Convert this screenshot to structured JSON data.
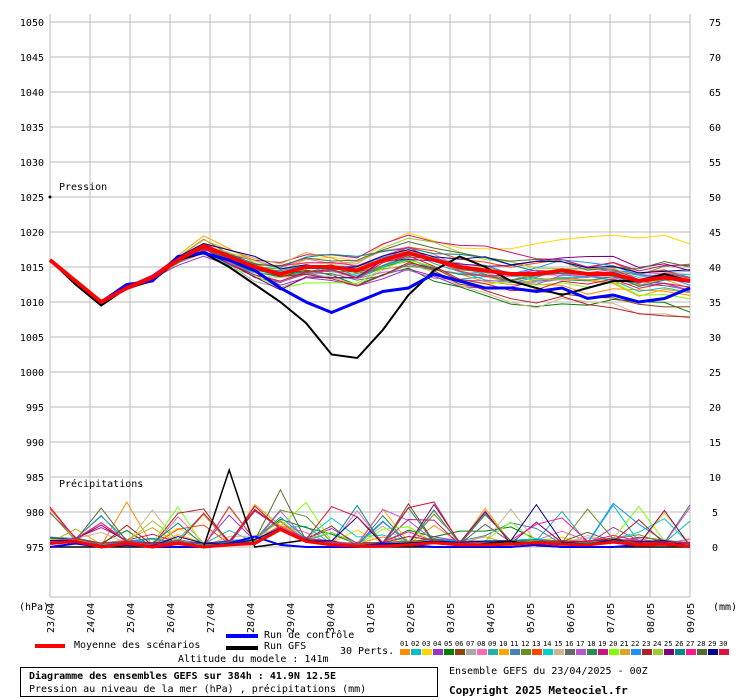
{
  "chart_data": {
    "type": "line",
    "title": "Diagramme des ensembles GEFS sur 384h : 41.9N 12.5E",
    "subtitle": "Pression au niveau de la mer (hPa) , précipitations (mm)",
    "x": [
      "23/04",
      "24/04",
      "25/04",
      "26/04",
      "27/04",
      "28/04",
      "29/04",
      "30/04",
      "01/05",
      "02/05",
      "03/05",
      "04/05",
      "05/05",
      "06/05",
      "07/05",
      "08/05",
      "09/05"
    ],
    "left_axis": {
      "label": "(hPa)",
      "ticks": [
        975,
        980,
        985,
        990,
        995,
        1000,
        1005,
        1010,
        1015,
        1020,
        1025,
        1030,
        1035,
        1040,
        1045,
        1050
      ],
      "range": [
        975,
        1050
      ]
    },
    "right_axis": {
      "label": "(mm)",
      "ticks": [
        0,
        5,
        10,
        15,
        20,
        25,
        30,
        35,
        40,
        45,
        50,
        55,
        60,
        65,
        70,
        75
      ],
      "range": [
        0,
        75
      ]
    },
    "annotations": [
      "Pression",
      "Précipitations"
    ],
    "grid": true,
    "series": [
      {
        "name": "Moyenne des scénarios",
        "color": "#ff0000",
        "pressure": [
          1016.0,
          1013.0,
          1010.0,
          1012.0,
          1013.5,
          1016.0,
          1018.0,
          1016.5,
          1015.0,
          1014.0,
          1015.0,
          1015.0,
          1014.5,
          1016.0,
          1017.0,
          1016.0,
          1015.0,
          1014.5,
          1014.0,
          1014.0,
          1014.5,
          1014.0,
          1014.0,
          1013.0,
          1013.5,
          1013.0
        ],
        "precip": [
          0.5,
          0.8,
          0,
          0.5,
          0,
          0.5,
          0,
          0.3,
          0.5,
          2.5,
          0.8,
          0.3,
          0.1,
          0.1,
          0.3,
          0.6,
          0.3,
          0.3,
          0.4,
          0.6,
          0.4,
          0.3,
          0.7,
          0.3,
          0.4,
          0.1
        ]
      },
      {
        "name": "Run de contrôle",
        "color": "#0000ff",
        "pressure": [
          1016.0,
          1013.0,
          1010.0,
          1012.5,
          1013.0,
          1016.5,
          1017.0,
          1016.0,
          1014.5,
          1012.0,
          1010.0,
          1008.5,
          1010.0,
          1011.5,
          1012.0,
          1014.0,
          1013.0,
          1012.0,
          1012.0,
          1011.5,
          1012.0,
          1010.5,
          1011.0,
          1010.0,
          1010.5,
          1012.0
        ],
        "precip": [
          0,
          0.5,
          0,
          0.3,
          0,
          0,
          0,
          0.5,
          1.5,
          0.3,
          0,
          0,
          0,
          0.5,
          0.3,
          0,
          0,
          0,
          0,
          0.3,
          0,
          0,
          0,
          0.3,
          0.5,
          0
        ]
      },
      {
        "name": "Run GFS",
        "color": "#000000",
        "pressure": [
          1016.0,
          1012.5,
          1009.5,
          1012.0,
          1013.0,
          1016.0,
          1017.0,
          1015.0,
          1012.5,
          1010.0,
          1007.0,
          1002.5,
          1002.0,
          1006.0,
          1011.0,
          1014.5,
          1016.5,
          1015.0,
          1013.0,
          1012.0,
          1011.0,
          1012.0,
          1013.0,
          1013.0,
          1014.0,
          1013.0
        ],
        "precip": [
          0,
          0,
          0,
          0,
          0,
          0,
          0,
          11.0,
          0,
          0.5,
          1.0,
          0.2,
          0,
          0,
          0,
          0,
          0,
          0.5,
          0.8,
          0.2,
          0,
          0,
          0,
          0,
          0,
          0
        ]
      }
    ],
    "perturbations": {
      "label": "30 Perts.",
      "count": 30,
      "labels": [
        "01",
        "02",
        "03",
        "04",
        "05",
        "06",
        "07",
        "08",
        "09",
        "10",
        "11",
        "12",
        "13",
        "14",
        "15",
        "16",
        "17",
        "18",
        "19",
        "20",
        "21",
        "22",
        "23",
        "24",
        "25",
        "26",
        "27",
        "28",
        "29",
        "30"
      ],
      "colors": [
        "#ff8c00",
        "#00c0c0",
        "#ffd700",
        "#9932cc",
        "#008000",
        "#8b4513",
        "#a9a9a9",
        "#ff69b4",
        "#20b2aa",
        "#ffa500",
        "#4682b4",
        "#6b8e23",
        "#ff4500",
        "#00ced1",
        "#d2b48c",
        "#696969",
        "#ba55d3",
        "#2e8b57",
        "#c71585",
        "#7fff00",
        "#daa520",
        "#1e90ff",
        "#b22222",
        "#9acd32",
        "#800080",
        "#008b8b",
        "#ff1493",
        "#556b2f",
        "#00008b",
        "#dc143c"
      ]
    }
  },
  "legend": {
    "mean_label": "Moyenne des scénarios",
    "control_label": "Run de contrôle",
    "gfs_label": "Run GFS",
    "altitude": "Altitude du modele : 141m",
    "perts_label": "30 Perts."
  },
  "info": {
    "title": "Diagramme des ensembles GEFS sur 384h : 41.9N 12.5E",
    "subtitle": "Pression au niveau de la mer (hPa) , précipitations (mm)",
    "run": "Ensemble GEFS du 23/04/2025 - 00Z",
    "copyright": "Copyright 2025 Meteociel.fr"
  }
}
